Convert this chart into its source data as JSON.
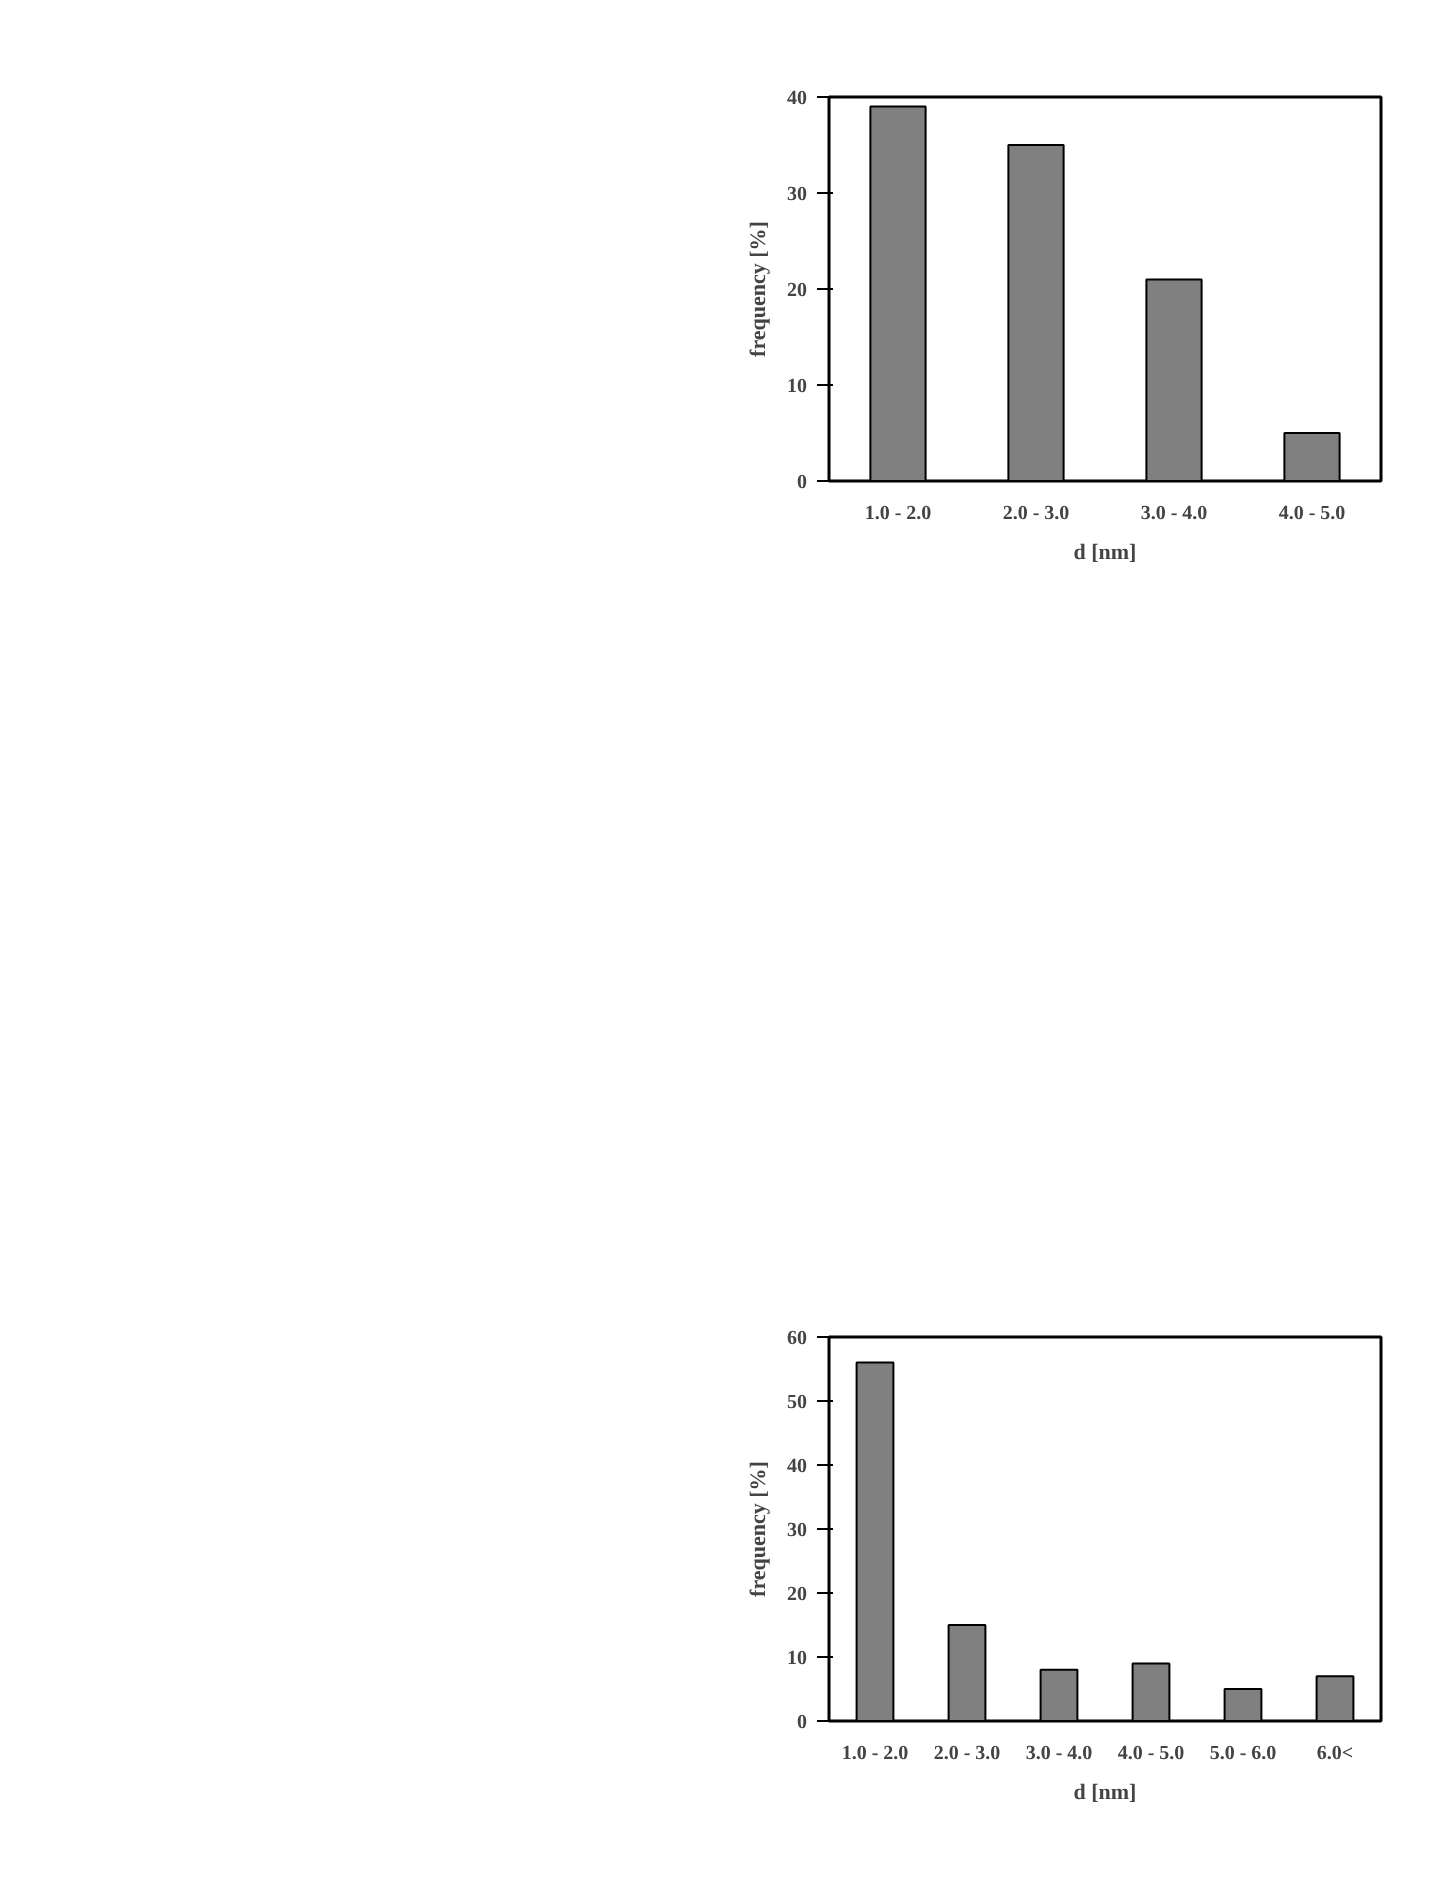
{
  "chart_data": [
    {
      "type": "bar",
      "categories": [
        "1.0 - 2.0",
        "2.0 - 3.0",
        "3.0 - 4.0",
        "4.0 - 5.0"
      ],
      "values": [
        39,
        35,
        21,
        5
      ],
      "color": "#808080",
      "ylim": [
        0,
        40
      ],
      "yticks": [
        0,
        10,
        20,
        30,
        40
      ],
      "ylabel": "frequency [%]",
      "xlabel": "d [nm]",
      "grid": false
    },
    {
      "type": "bar",
      "categories": [
        "1.0 - 2.0",
        "2.0 - 3.0",
        "3.0 - 4.0",
        "4.0 - 5.0",
        "5.0 - 6.0",
        "6.0<"
      ],
      "values": [
        56,
        15,
        8,
        9,
        5,
        7
      ],
      "color": "#808080",
      "ylim": [
        0,
        60
      ],
      "yticks": [
        0,
        10,
        20,
        30,
        40,
        50,
        60
      ],
      "ylabel": "frequency [%]",
      "xlabel": "d [nm]",
      "grid": false
    }
  ]
}
